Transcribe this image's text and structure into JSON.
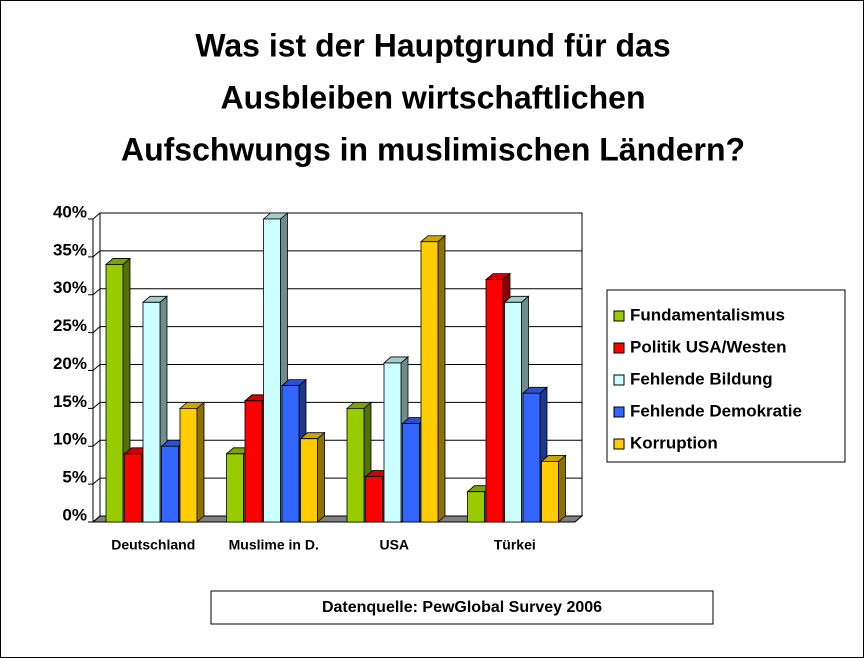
{
  "chart_data": {
    "type": "bar3d",
    "title": [
      "Was ist der Hauptgrund für das",
      "Ausbleiben wirtschaftlichen",
      "Aufschwungs in muslimischen Ländern?"
    ],
    "categories": [
      "Deutschland",
      "Muslime in D.",
      "USA",
      "Türkei"
    ],
    "series": [
      {
        "name": "Fundamentalismus",
        "color": "#99cc00",
        "values": [
          34,
          9,
          15,
          4
        ]
      },
      {
        "name": "Politik USA/Westen",
        "color": "#ff0000",
        "values": [
          9,
          16,
          6,
          32
        ]
      },
      {
        "name": "Fehlende Bildung",
        "color": "#ccffff",
        "values": [
          29,
          40,
          21,
          29
        ]
      },
      {
        "name": "Fehlende Demokratie",
        "color": "#3366ff",
        "values": [
          10,
          18,
          13,
          17
        ]
      },
      {
        "name": "Korruption",
        "color": "#ffcc00",
        "values": [
          15,
          11,
          37,
          8
        ]
      }
    ],
    "ylim": [
      0,
      40
    ],
    "yticks": [
      {
        "value": 0,
        "label": "0%"
      },
      {
        "value": 5,
        "label": "5%"
      },
      {
        "value": 10,
        "label": "10%"
      },
      {
        "value": 15,
        "label": "15%"
      },
      {
        "value": 20,
        "label": "20%"
      },
      {
        "value": 25,
        "label": "25%"
      },
      {
        "value": 30,
        "label": "30%"
      },
      {
        "value": 35,
        "label": "35%"
      },
      {
        "value": 40,
        "label": "40%"
      }
    ],
    "grid": true,
    "legend": "right",
    "source": "Datenquelle: PewGlobal Survey 2006"
  }
}
